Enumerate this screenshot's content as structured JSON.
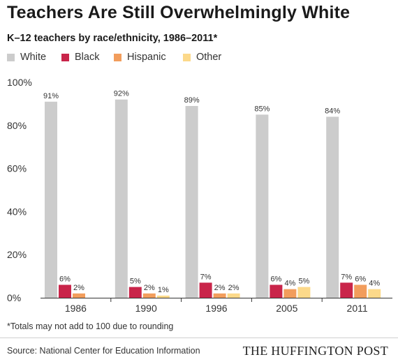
{
  "header": {
    "title": "Teachers Are Still Overwhelmingly White",
    "subtitle": "K–12 teachers by race/ethnicity, 1986–2011*"
  },
  "legend": [
    {
      "label": "White",
      "color": "#cccccc"
    },
    {
      "label": "Black",
      "color": "#c9254a"
    },
    {
      "label": "Hispanic",
      "color": "#f29d5c"
    },
    {
      "label": "Other",
      "color": "#fcd98a"
    }
  ],
  "chart_data": {
    "type": "bar",
    "categories": [
      "1986",
      "1990",
      "1996",
      "2005",
      "2011"
    ],
    "series": [
      {
        "name": "White",
        "values": [
          91,
          92,
          89,
          85,
          84
        ],
        "labels": [
          "91%",
          "92%",
          "89%",
          "85%",
          "84%"
        ]
      },
      {
        "name": "Black",
        "values": [
          6,
          5,
          7,
          6,
          7
        ],
        "labels": [
          "6%",
          "5%",
          "7%",
          "6%",
          "7%"
        ]
      },
      {
        "name": "Hispanic",
        "values": [
          2,
          2,
          2,
          4,
          6
        ],
        "labels": [
          "2%",
          "2%",
          "2%",
          "4%",
          "6%"
        ]
      },
      {
        "name": "Other",
        "values": [
          0,
          1,
          2,
          5,
          4
        ],
        "labels": [
          "",
          "1%",
          "2%",
          "5%",
          "4%"
        ]
      }
    ],
    "colors": [
      "#cccccc",
      "#c9254a",
      "#f29d5c",
      "#fcd98a"
    ],
    "ylim": [
      0,
      100
    ],
    "yticks": [
      0,
      20,
      40,
      60,
      80,
      100
    ],
    "ytick_labels": [
      "0%",
      "20%",
      "40%",
      "60%",
      "80%",
      "100%"
    ],
    "grid": false,
    "legend_position": "top-left"
  },
  "footer": {
    "note": "*Totals may not add to 100 due to rounding",
    "source": "Source: National Center for Education Information",
    "brand": "THE HUFFINGTON POST"
  }
}
